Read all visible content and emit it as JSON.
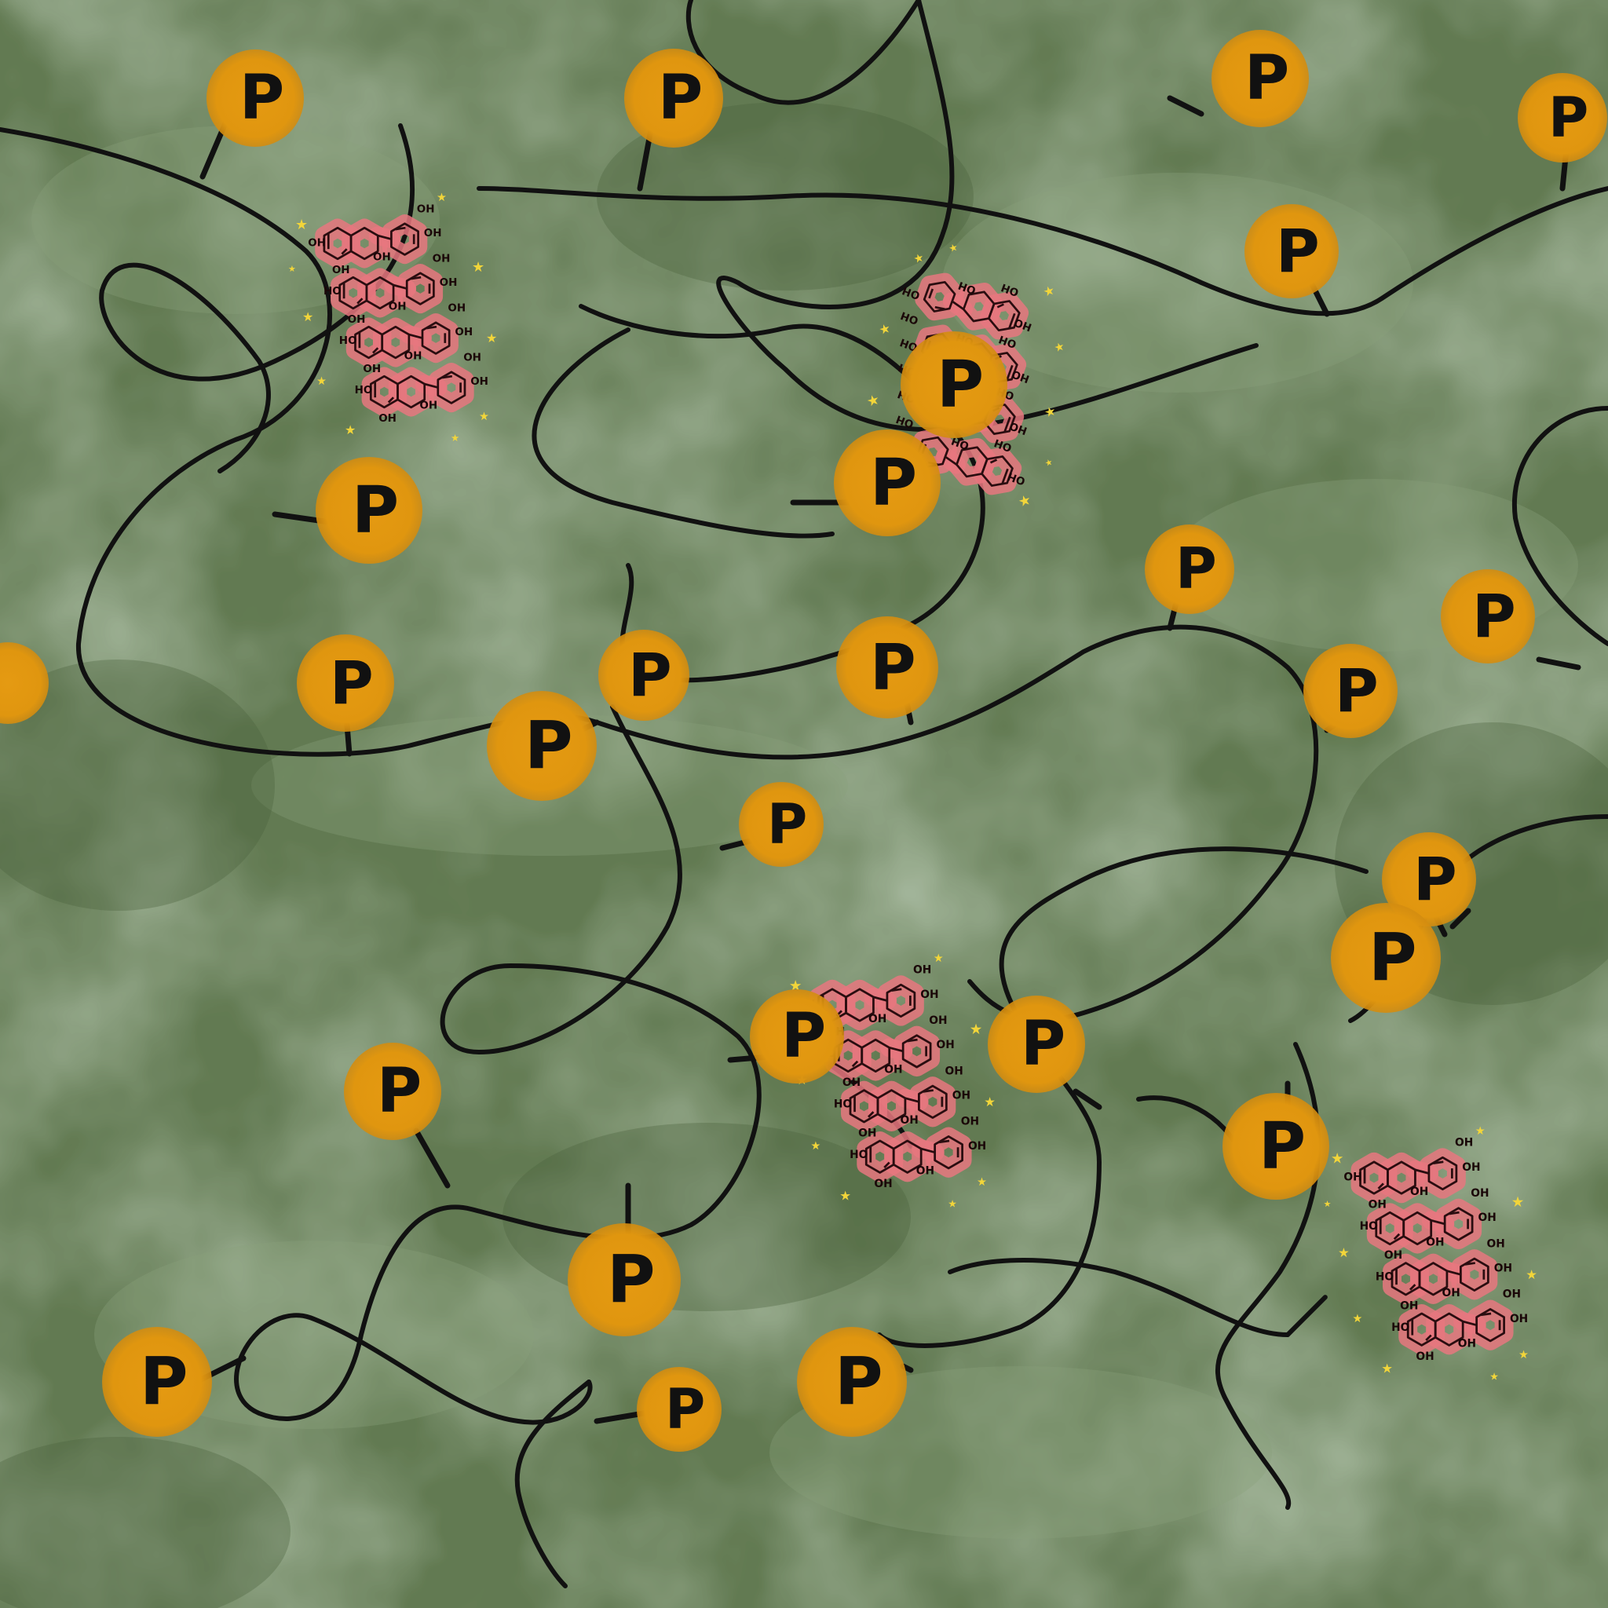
{
  "colors": {
    "background": "#627a52",
    "background_light": "#7f9672",
    "background_dark": "#4f6440",
    "strand": "#111111",
    "p_blob": "#e0960f",
    "molecule_glow": "#e8777f",
    "molecule_line": "#2a0d10",
    "sparkle": "#f2d53a"
  },
  "labels": {
    "phosphate": "P",
    "hydroxyl": "OH",
    "hydroxyl_alt": "HO"
  }
}
